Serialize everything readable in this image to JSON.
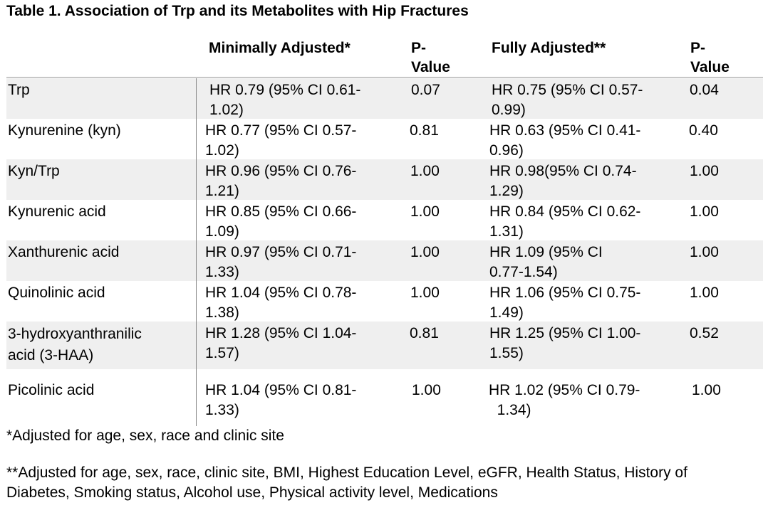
{
  "title": "Table 1. Association of Trp and its Metabolites with Hip Fractures",
  "headers": {
    "minimally_adjusted": "Minimally Adjusted*",
    "p_value_1": "P-\nValue",
    "fully_adjusted": "Fully Adjusted**",
    "p_value_2": "P-\nValue"
  },
  "rows": [
    {
      "label": "Trp",
      "min": "HR 0.79 (95% CI 0.61-\n1.02)",
      "p1": "0.07",
      "full": "HR 0.75 (95% CI 0.57-\n0.99)",
      "p2": "0.04"
    },
    {
      "label": "Kynurenine (kyn)",
      "min": "HR 0.77 (95% CI 0.57-\n1.02)",
      "p1": "0.81",
      "full": "HR 0.63 (95% CI 0.41-\n0.96)",
      "p2": "0.40"
    },
    {
      "label": "Kyn/Trp",
      "min": "HR 0.96 (95% CI 0.76-\n1.21)",
      "p1": "1.00",
      "full": "HR 0.98(95% CI 0.74-\n1.29)",
      "p2": "1.00"
    },
    {
      "label": "Kynurenic acid",
      "min": "HR 0.85 (95% CI 0.66-\n1.09)",
      "p1": "1.00",
      "full": "HR 0.84 (95% CI 0.62-\n1.31)",
      "p2": "1.00"
    },
    {
      "label": "Xanthurenic acid",
      "min": "HR 0.97 (95% CI 0.71-\n1.33)",
      "p1": "1.00",
      "full": "HR 1.09 (95% CI\n0.77-1.54)",
      "p2": "1.00"
    },
    {
      "label": "Quinolinic acid",
      "min": "HR 1.04 (95% CI 0.78-\n1.38)",
      "p1": "1.00",
      "full": "HR 1.06 (95% CI 0.75-\n1.49)",
      "p2": "1.00"
    },
    {
      "label": "3-hydroxyanthranilic\nacid (3-HAA)",
      "min": "HR 1.28 (95% CI 1.04-\n1.57)",
      "p1": "0.81",
      "full": "HR 1.25 (95% CI 1.00-\n1.55)",
      "p2": "0.52"
    },
    {
      "label": "Picolinic acid",
      "min": "HR 1.04 (95% CI 0.81-\n1.33)",
      "p1": "1.00",
      "full": "HR 1.02 (95% CI 0.79-\n  1.34)",
      "p2": "1.00"
    }
  ],
  "footnotes": {
    "minimal": "*Adjusted for age, sex, race and clinic site",
    "full": "**Adjusted for age, sex, race, clinic site, BMI, Highest Education Level, eGFR, Health Status, History of Diabetes, Smoking status, Alcohol use, Physical activity level, Medications"
  }
}
